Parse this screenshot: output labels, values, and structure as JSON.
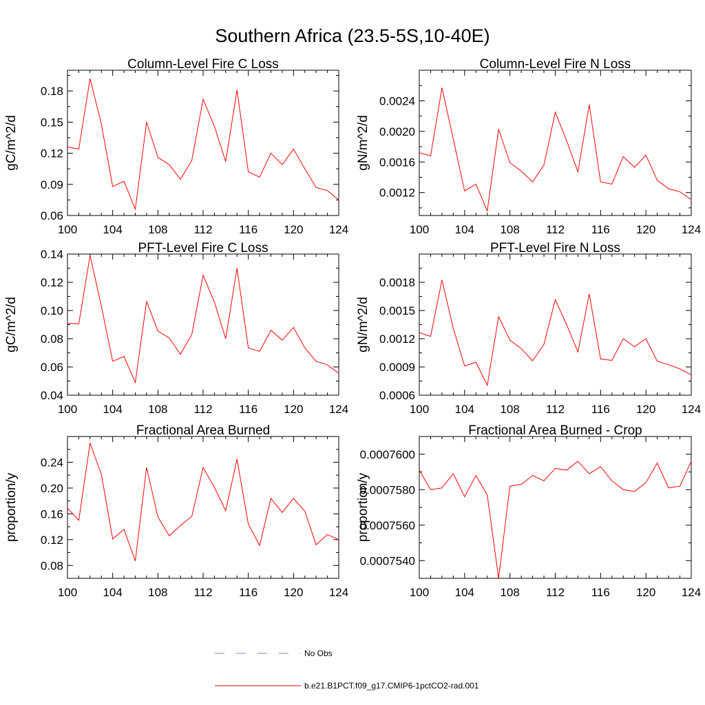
{
  "figure": {
    "title": "Southern Africa (23.5-5S,10-40E)"
  },
  "legend": [
    {
      "label": "No Obs",
      "color": "#7f7fcc",
      "style": "dashed"
    },
    {
      "label": "b.e21.B1PCT.f09_g17.CMIP6-1pctCO2-rad.001",
      "color": "#ff0000",
      "style": "solid"
    }
  ],
  "chart_data": [
    {
      "type": "line",
      "title": "Column-Level Fire C Loss",
      "ylabel": "gC/m^2/d",
      "xlim": [
        100,
        124
      ],
      "ylim": [
        0.06,
        0.2
      ],
      "xticks": [
        100,
        104,
        108,
        112,
        116,
        120,
        124
      ],
      "xtick_labels": [
        "100",
        "104",
        "108",
        "112",
        "116",
        "120",
        "124"
      ],
      "yticks": [
        0.06,
        0.09,
        0.12,
        0.15,
        0.18
      ],
      "ytick_labels": [
        "0.06",
        "0.09",
        "0.12",
        "0.15",
        "0.18"
      ],
      "x": [
        100,
        101,
        102,
        103,
        104,
        105,
        106,
        107,
        108,
        109,
        110,
        111,
        112,
        113,
        114,
        115,
        116,
        117,
        118,
        119,
        120,
        121,
        122,
        123,
        124
      ],
      "series": [
        {
          "name": "b.e21.B1PCT.f09_g17.CMIP6-1pctCO2-rad.001",
          "color": "#ff0000",
          "values": [
            0.126,
            0.124,
            0.192,
            0.148,
            0.088,
            0.093,
            0.066,
            0.15,
            0.116,
            0.109,
            0.095,
            0.113,
            0.172,
            0.146,
            0.112,
            0.181,
            0.102,
            0.097,
            0.12,
            0.109,
            0.124,
            0.105,
            0.087,
            0.084,
            0.075
          ]
        }
      ]
    },
    {
      "type": "line",
      "title": "Column-Level Fire N Loss",
      "ylabel": "gN/m^2/d",
      "xlim": [
        100,
        124
      ],
      "ylim": [
        0.0009,
        0.0028
      ],
      "xticks": [
        100,
        104,
        108,
        112,
        116,
        120,
        124
      ],
      "xtick_labels": [
        "100",
        "104",
        "108",
        "112",
        "116",
        "120",
        "124"
      ],
      "yticks": [
        0.0012,
        0.0016,
        0.002,
        0.0024
      ],
      "ytick_labels": [
        "0.0012",
        "0.0016",
        "0.0020",
        "0.0024"
      ],
      "x": [
        100,
        101,
        102,
        103,
        104,
        105,
        106,
        107,
        108,
        109,
        110,
        111,
        112,
        113,
        114,
        115,
        116,
        117,
        118,
        119,
        120,
        121,
        122,
        123,
        124
      ],
      "series": [
        {
          "name": "b.e21.B1PCT.f09_g17.CMIP6-1pctCO2-rad.001",
          "color": "#ff0000",
          "values": [
            0.00172,
            0.00168,
            0.00257,
            0.0019,
            0.00122,
            0.00131,
            0.00096,
            0.00203,
            0.00159,
            0.00148,
            0.00134,
            0.00156,
            0.00225,
            0.00188,
            0.00147,
            0.00235,
            0.00134,
            0.00131,
            0.00167,
            0.00153,
            0.00169,
            0.00136,
            0.00125,
            0.00121,
            0.00111
          ]
        }
      ]
    },
    {
      "type": "line",
      "title": "PFT-Level Fire C Loss",
      "ylabel": "gC/m^2/d",
      "xlim": [
        100,
        124
      ],
      "ylim": [
        0.04,
        0.14
      ],
      "xticks": [
        100,
        104,
        108,
        112,
        116,
        120,
        124
      ],
      "xtick_labels": [
        "100",
        "104",
        "108",
        "112",
        "116",
        "120",
        "124"
      ],
      "yticks": [
        0.04,
        0.06,
        0.08,
        0.1,
        0.12,
        0.14
      ],
      "ytick_labels": [
        "0.04",
        "0.06",
        "0.08",
        "0.10",
        "0.12",
        "0.14"
      ],
      "x": [
        100,
        101,
        102,
        103,
        104,
        105,
        106,
        107,
        108,
        109,
        110,
        111,
        112,
        113,
        114,
        115,
        116,
        117,
        118,
        119,
        120,
        121,
        122,
        123,
        124
      ],
      "series": [
        {
          "name": "b.e21.B1PCT.f09_g17.CMIP6-1pctCO2-rad.001",
          "color": "#ff0000",
          "values": [
            0.091,
            0.0905,
            0.139,
            0.103,
            0.064,
            0.0675,
            0.049,
            0.1065,
            0.0855,
            0.0805,
            0.069,
            0.083,
            0.125,
            0.106,
            0.08,
            0.13,
            0.0735,
            0.071,
            0.086,
            0.079,
            0.088,
            0.0735,
            0.064,
            0.0615,
            0.0555
          ]
        }
      ]
    },
    {
      "type": "line",
      "title": "PFT-Level Fire N Loss",
      "ylabel": "gN/m^2/d",
      "xlim": [
        100,
        124
      ],
      "ylim": [
        0.0006,
        0.0021
      ],
      "xticks": [
        100,
        104,
        108,
        112,
        116,
        120,
        124
      ],
      "xtick_labels": [
        "100",
        "104",
        "108",
        "112",
        "116",
        "120",
        "124"
      ],
      "yticks": [
        0.0006,
        0.0009,
        0.0012,
        0.0015,
        0.0018
      ],
      "ytick_labels": [
        "0.0006",
        "0.0009",
        "0.0012",
        "0.0015",
        "0.0018"
      ],
      "x": [
        100,
        101,
        102,
        103,
        104,
        105,
        106,
        107,
        108,
        109,
        110,
        111,
        112,
        113,
        114,
        115,
        116,
        117,
        118,
        119,
        120,
        121,
        122,
        123,
        124
      ],
      "series": [
        {
          "name": "b.e21.B1PCT.f09_g17.CMIP6-1pctCO2-rad.001",
          "color": "#ff0000",
          "values": [
            0.001265,
            0.001225,
            0.001825,
            0.00131,
            0.00091,
            0.00095,
            0.000705,
            0.001435,
            0.001185,
            0.001095,
            0.000965,
            0.00114,
            0.001615,
            0.00135,
            0.00106,
            0.001675,
            0.000985,
            0.00097,
            0.0012,
            0.001115,
            0.0012,
            0.00096,
            0.000925,
            0.00088,
            0.000815
          ]
        }
      ]
    },
    {
      "type": "line",
      "title": "Fractional Area Burned",
      "ylabel": "proportion/y",
      "xlim": [
        100,
        124
      ],
      "ylim": [
        0.06,
        0.28
      ],
      "xticks": [
        100,
        104,
        108,
        112,
        116,
        120,
        124
      ],
      "xtick_labels": [
        "100",
        "104",
        "108",
        "112",
        "116",
        "120",
        "124"
      ],
      "yticks": [
        0.08,
        0.12,
        0.16,
        0.2,
        0.24
      ],
      "ytick_labels": [
        "0.08",
        "0.12",
        "0.16",
        "0.20",
        "0.24"
      ],
      "x": [
        100,
        101,
        102,
        103,
        104,
        105,
        106,
        107,
        108,
        109,
        110,
        111,
        112,
        113,
        114,
        115,
        116,
        117,
        118,
        119,
        120,
        121,
        122,
        123,
        124
      ],
      "series": [
        {
          "name": "b.e21.B1PCT.f09_g17.CMIP6-1pctCO2-rad.001",
          "color": "#ff0000",
          "values": [
            0.169,
            0.15,
            0.27,
            0.221,
            0.121,
            0.136,
            0.087,
            0.232,
            0.155,
            0.126,
            0.142,
            0.156,
            0.232,
            0.201,
            0.165,
            0.245,
            0.144,
            0.111,
            0.184,
            0.162,
            0.184,
            0.164,
            0.112,
            0.128,
            0.12
          ]
        }
      ]
    },
    {
      "type": "line",
      "title": "Fractional Area Burned - Crop",
      "ylabel": "proportion/y",
      "xlim": [
        100,
        124
      ],
      "ylim": [
        0.000753,
        0.000761
      ],
      "xticks": [
        100,
        104,
        108,
        112,
        116,
        120,
        124
      ],
      "xtick_labels": [
        "100",
        "104",
        "108",
        "112",
        "116",
        "120",
        "124"
      ],
      "yticks": [
        0.000754,
        0.000756,
        0.000758,
        0.00076
      ],
      "ytick_labels": [
        "0.0007540",
        "0.0007560",
        "0.0007580",
        "0.0007600"
      ],
      "x": [
        100,
        101,
        102,
        103,
        104,
        105,
        106,
        107,
        108,
        109,
        110,
        111,
        112,
        113,
        114,
        115,
        116,
        117,
        118,
        119,
        120,
        121,
        122,
        123,
        124
      ],
      "series": [
        {
          "name": "b.e21.B1PCT.f09_g17.CMIP6-1pctCO2-rad.001",
          "color": "#ff0000",
          "values": [
            0.0007591,
            0.000758,
            0.0007581,
            0.0007589,
            0.0007576,
            0.0007588,
            0.0007577,
            0.000753,
            0.0007582,
            0.0007583,
            0.0007588,
            0.0007585,
            0.0007592,
            0.0007591,
            0.0007596,
            0.0007589,
            0.0007593,
            0.0007585,
            0.000758,
            0.0007579,
            0.0007584,
            0.0007595,
            0.0007581,
            0.0007582,
            0.0007596
          ]
        }
      ]
    }
  ]
}
